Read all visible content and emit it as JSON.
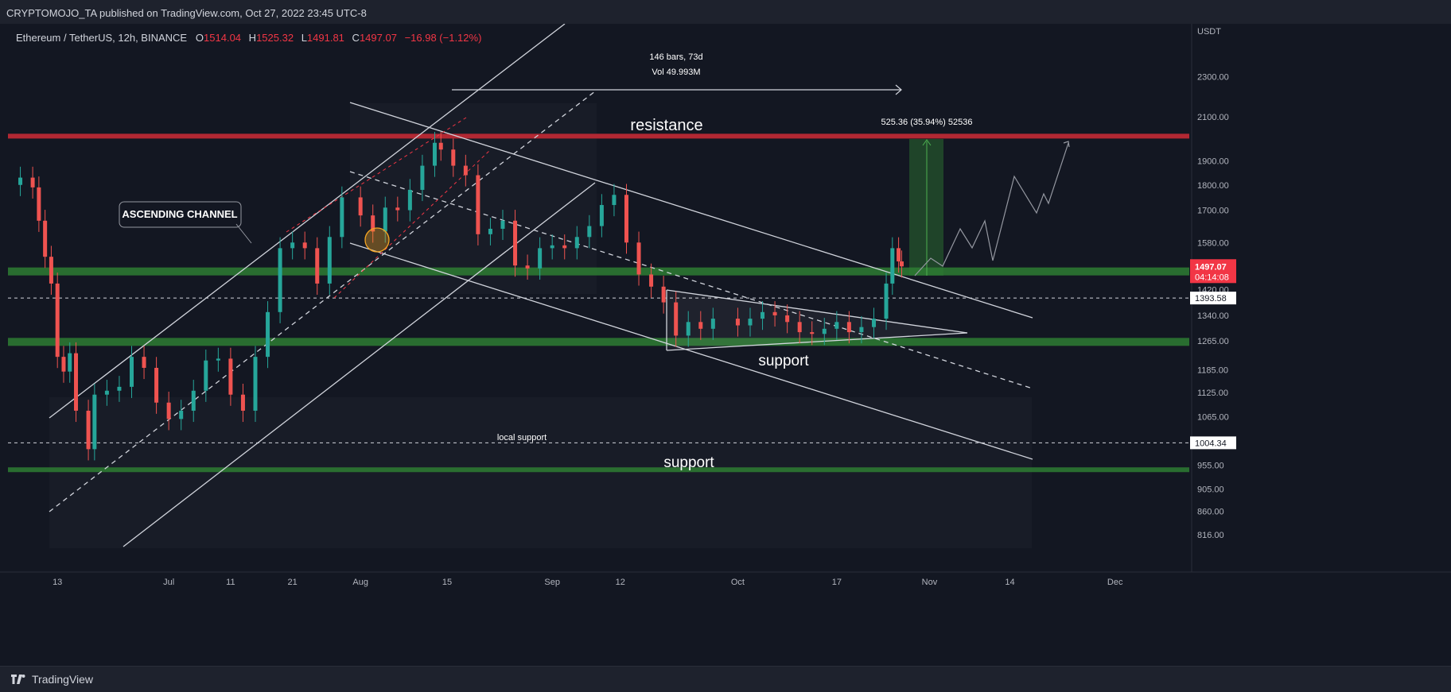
{
  "header": {
    "publish_line": "CRYPTOMOJO_TA published on TradingView.com, Oct 27, 2022 23:45 UTC-8"
  },
  "footer": {
    "brand": "TradingView"
  },
  "legend": {
    "symbol": "Ethereum / TetherUS, 12h, BINANCE",
    "o_label": "O",
    "o": "1514.04",
    "h_label": "H",
    "h": "1525.32",
    "l_label": "L",
    "l": "1491.81",
    "c_label": "C",
    "c": "1497.07",
    "change": "−16.98 (−1.12%)"
  },
  "colors": {
    "background": "#131722",
    "up": "#26a69a",
    "down": "#ef5350",
    "resistance": "#b22833",
    "support": "#2e7d32",
    "drawing": "#d1d4dc"
  },
  "chart_data": {
    "type": "candlestick",
    "symbol": "ETHUSDT",
    "interval": "12h",
    "y_axis_label": "USDT",
    "y_scale": "log",
    "ylim": [
      780,
      2500
    ],
    "y_ticks": [
      "2300.00",
      "2100.00",
      "1900.00",
      "1800.00",
      "1700.00",
      "1580.00",
      "1420.00",
      "1340.00",
      "1265.00",
      "1185.00",
      "1125.00",
      "1065.00",
      "955.00",
      "905.00",
      "860.00",
      "816.00"
    ],
    "x_ticks": [
      "13",
      "Jul",
      "11",
      "21",
      "Aug",
      "15",
      "Sep",
      "12",
      "Oct",
      "17",
      "Nov",
      "14",
      "Dec"
    ],
    "x_range": [
      "2022-06-05",
      "2022-12-13"
    ],
    "x_tick_dates": [
      "2022-06-13",
      "2022-07-01",
      "2022-07-11",
      "2022-07-21",
      "2022-08-01",
      "2022-08-15",
      "2022-09-01",
      "2022-09-12",
      "2022-10-01",
      "2022-10-17",
      "2022-11-01",
      "2022-11-14",
      "2022-12-01"
    ],
    "close_series": [
      [
        "2022-06-05",
        1800
      ],
      [
        "2022-06-07",
        1830
      ],
      [
        "2022-06-09",
        1790
      ],
      [
        "2022-06-10",
        1660
      ],
      [
        "2022-06-11",
        1530
      ],
      [
        "2022-06-12",
        1440
      ],
      [
        "2022-06-13",
        1220
      ],
      [
        "2022-06-14",
        1180
      ],
      [
        "2022-06-15",
        1230
      ],
      [
        "2022-06-16",
        1080
      ],
      [
        "2022-06-18",
        990
      ],
      [
        "2022-06-19",
        1120
      ],
      [
        "2022-06-21",
        1130
      ],
      [
        "2022-06-23",
        1140
      ],
      [
        "2022-06-25",
        1220
      ],
      [
        "2022-06-27",
        1190
      ],
      [
        "2022-06-29",
        1100
      ],
      [
        "2022-07-01",
        1060
      ],
      [
        "2022-07-03",
        1080
      ],
      [
        "2022-07-05",
        1130
      ],
      [
        "2022-07-07",
        1210
      ],
      [
        "2022-07-09",
        1215
      ],
      [
        "2022-07-11",
        1120
      ],
      [
        "2022-07-13",
        1080
      ],
      [
        "2022-07-15",
        1220
      ],
      [
        "2022-07-17",
        1350
      ],
      [
        "2022-07-19",
        1560
      ],
      [
        "2022-07-21",
        1580
      ],
      [
        "2022-07-23",
        1560
      ],
      [
        "2022-07-25",
        1440
      ],
      [
        "2022-07-27",
        1600
      ],
      [
        "2022-07-29",
        1750
      ],
      [
        "2022-08-01",
        1680
      ],
      [
        "2022-08-03",
        1620
      ],
      [
        "2022-08-05",
        1710
      ],
      [
        "2022-08-07",
        1700
      ],
      [
        "2022-08-09",
        1780
      ],
      [
        "2022-08-11",
        1880
      ],
      [
        "2022-08-13",
        1980
      ],
      [
        "2022-08-14",
        1950
      ],
      [
        "2022-08-16",
        1880
      ],
      [
        "2022-08-18",
        1840
      ],
      [
        "2022-08-20",
        1610
      ],
      [
        "2022-08-22",
        1630
      ],
      [
        "2022-08-24",
        1660
      ],
      [
        "2022-08-26",
        1500
      ],
      [
        "2022-08-28",
        1490
      ],
      [
        "2022-08-30",
        1560
      ],
      [
        "2022-09-01",
        1570
      ],
      [
        "2022-09-03",
        1560
      ],
      [
        "2022-09-05",
        1600
      ],
      [
        "2022-09-07",
        1640
      ],
      [
        "2022-09-09",
        1720
      ],
      [
        "2022-09-11",
        1760
      ],
      [
        "2022-09-13",
        1580
      ],
      [
        "2022-09-15",
        1470
      ],
      [
        "2022-09-17",
        1430
      ],
      [
        "2022-09-19",
        1380
      ],
      [
        "2022-09-21",
        1280
      ],
      [
        "2022-09-23",
        1320
      ],
      [
        "2022-09-25",
        1300
      ],
      [
        "2022-09-27",
        1330
      ],
      [
        "2022-10-01",
        1310
      ],
      [
        "2022-10-03",
        1330
      ],
      [
        "2022-10-05",
        1350
      ],
      [
        "2022-10-07",
        1340
      ],
      [
        "2022-10-09",
        1320
      ],
      [
        "2022-10-11",
        1290
      ],
      [
        "2022-10-13",
        1285
      ],
      [
        "2022-10-15",
        1300
      ],
      [
        "2022-10-17",
        1320
      ],
      [
        "2022-10-19",
        1290
      ],
      [
        "2022-10-21",
        1305
      ],
      [
        "2022-10-23",
        1330
      ],
      [
        "2022-10-25",
        1440
      ],
      [
        "2022-10-26",
        1560
      ],
      [
        "2022-10-27",
        1514
      ],
      [
        "2022-10-27T12",
        1497.07
      ]
    ],
    "levels": [
      {
        "name": "resistance",
        "price": 2010,
        "label": "resistance"
      },
      {
        "name": "support-upper",
        "price": 1480
      },
      {
        "name": "support-mid",
        "price": 1262,
        "label": "support"
      },
      {
        "name": "support-low",
        "price": 945,
        "label": "support"
      },
      {
        "name": "dotted-1393",
        "price": 1393.58
      },
      {
        "name": "dotted-1004",
        "price": 1004.34,
        "label": "local support"
      }
    ],
    "annotations": {
      "ascending_channel": "ASCENDING CHANNEL",
      "bars_range": "146 bars, 73d",
      "volume": "Vol 49.993M",
      "measure": "525.36 (35.94%) 52536",
      "local_support": "local support",
      "support_mid": "support",
      "support_low": "support",
      "resistance": "resistance"
    },
    "price_tags": {
      "last_price": "1497.07",
      "countdown": "04:14:08",
      "level_1393": "1393.58",
      "level_1004": "1004.34"
    }
  }
}
